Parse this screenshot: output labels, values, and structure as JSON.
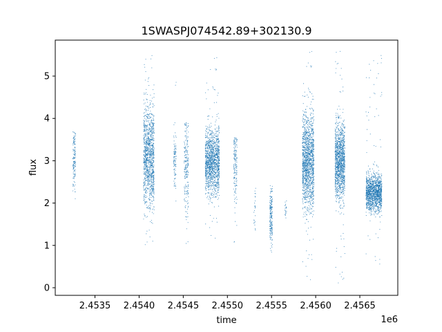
{
  "chart_data": {
    "type": "scatter",
    "title": "1SWASPJ074542.89+302130.9",
    "xlabel": "time",
    "ylabel": "flux",
    "x_offset_label": "1e6",
    "xlim": [
      2.45305,
      2.45693
    ],
    "ylim": [
      -0.18,
      5.85
    ],
    "x_ticks": [
      2.4535,
      2.454,
      2.4545,
      2.455,
      2.4555,
      2.456,
      2.4565
    ],
    "x_tick_labels": [
      "2.4535",
      "2.4540",
      "2.4545",
      "2.4550",
      "2.4555",
      "2.4560",
      "2.4565"
    ],
    "y_ticks": [
      0,
      1,
      2,
      3,
      4,
      5
    ],
    "y_tick_labels": [
      "0",
      "1",
      "2",
      "3",
      "4",
      "5"
    ],
    "grid": false,
    "marker_color": "#1f77b4",
    "series": [
      {
        "clusters": [
          {
            "x_min": 2.45325,
            "x_max": 2.45328,
            "y_center": 3.05,
            "y_spread": 0.35,
            "y_min": 2.1,
            "y_max": 3.8,
            "n": 140
          },
          {
            "x_min": 2.45405,
            "x_max": 2.45417,
            "y_center": 3.1,
            "y_spread": 0.6,
            "y_min": 1.0,
            "y_max": 5.6,
            "n": 1200
          },
          {
            "x_min": 2.45439,
            "x_max": 2.45442,
            "y_center": 3.0,
            "y_spread": 0.3,
            "y_min": 2.0,
            "y_max": 4.9,
            "n": 100
          },
          {
            "x_min": 2.45451,
            "x_max": 2.45456,
            "y_center": 2.9,
            "y_spread": 0.6,
            "y_min": 0.45,
            "y_max": 3.9,
            "n": 220
          },
          {
            "x_min": 2.45475,
            "x_max": 2.45491,
            "y_center": 3.0,
            "y_spread": 0.38,
            "y_min": 1.1,
            "y_max": 5.45,
            "n": 1400
          },
          {
            "x_min": 2.45507,
            "x_max": 2.45511,
            "y_center": 2.9,
            "y_spread": 0.45,
            "y_min": 0.7,
            "y_max": 3.55,
            "n": 160
          },
          {
            "x_min": 2.4553,
            "x_max": 2.45532,
            "y_center": 1.9,
            "y_spread": 0.3,
            "y_min": 1.2,
            "y_max": 2.35,
            "n": 25
          },
          {
            "x_min": 2.45548,
            "x_max": 2.45551,
            "y_center": 1.7,
            "y_spread": 0.35,
            "y_min": 0.55,
            "y_max": 2.45,
            "n": 200
          },
          {
            "x_min": 2.45565,
            "x_max": 2.45567,
            "y_center": 1.85,
            "y_spread": 0.15,
            "y_min": 1.6,
            "y_max": 2.1,
            "n": 20
          },
          {
            "x_min": 2.45585,
            "x_max": 2.45598,
            "y_center": 3.0,
            "y_spread": 0.55,
            "y_min": 0.1,
            "y_max": 5.6,
            "n": 1500
          },
          {
            "x_min": 2.45622,
            "x_max": 2.45633,
            "y_center": 3.0,
            "y_spread": 0.45,
            "y_min": 0.1,
            "y_max": 5.65,
            "n": 1300
          },
          {
            "x_min": 2.45657,
            "x_max": 2.45675,
            "y_center": 2.25,
            "y_spread": 0.22,
            "y_min": 0.45,
            "y_max": 5.5,
            "n": 1400
          }
        ]
      }
    ]
  }
}
